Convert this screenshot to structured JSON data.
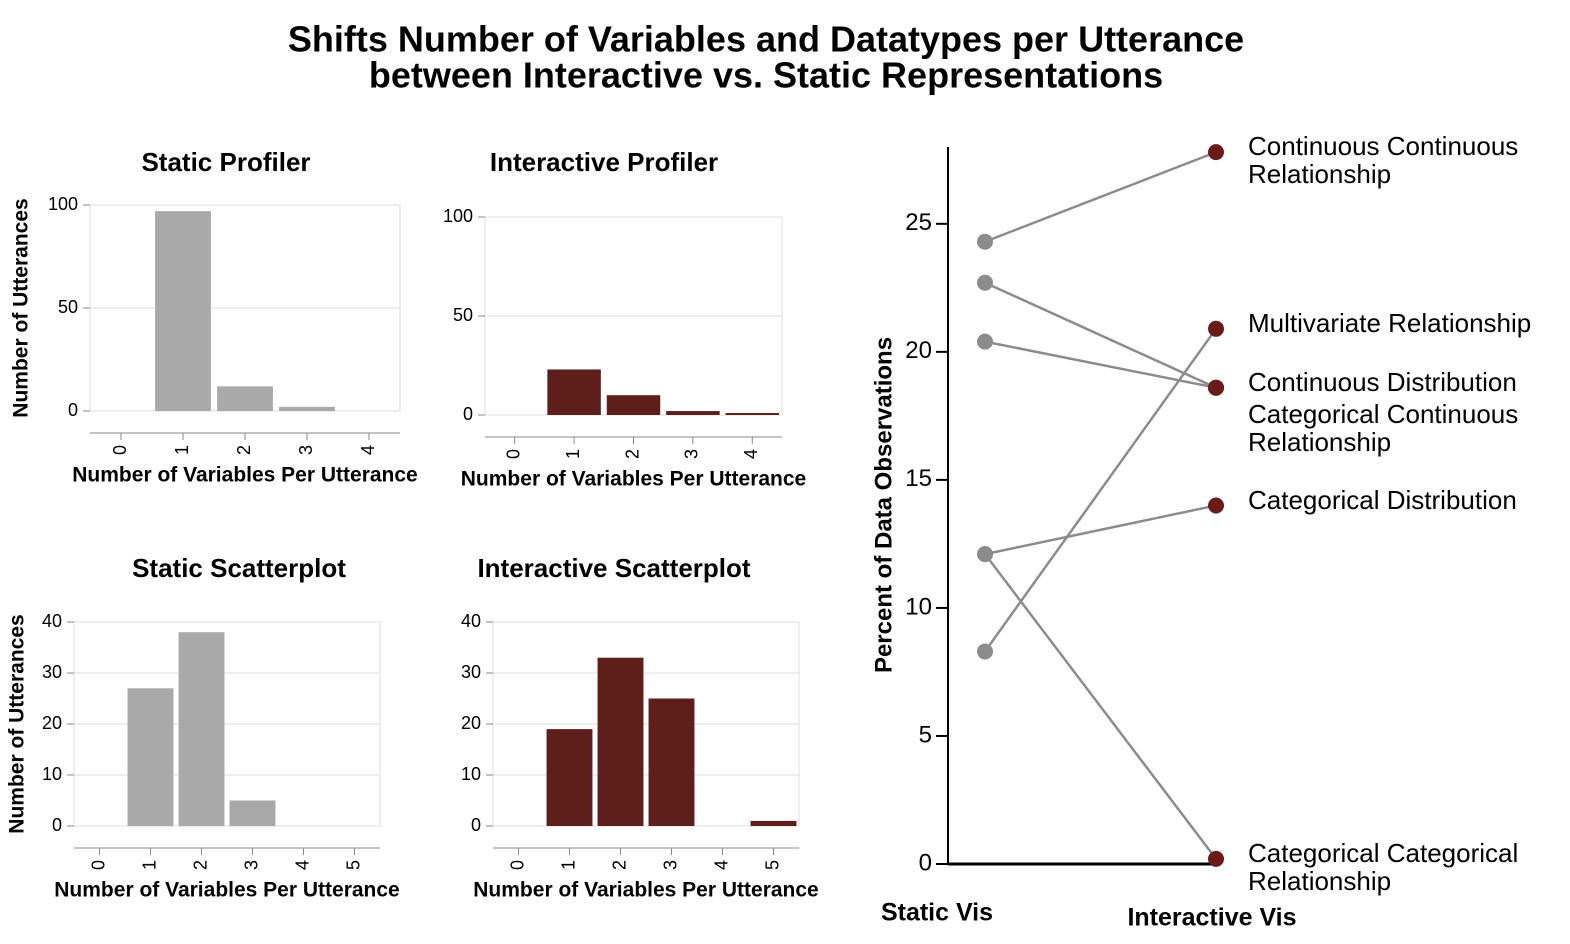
{
  "title": [
    "Shifts Number of Variables and Datatypes per Utterance",
    "between Interactive vs. Static Representations"
  ],
  "chart_data": [
    {
      "type": "bar",
      "title": "Static Profiler",
      "x_label": "Number of Variables Per Utterance",
      "y_label": "Number of Utterances",
      "categories": [
        "0",
        "1",
        "2",
        "3",
        "4"
      ],
      "values": [
        0,
        97,
        12,
        2,
        0
      ],
      "color": "#a9a9a9",
      "ylim": [
        0,
        100
      ],
      "yticks": [
        0,
        50,
        100
      ],
      "grid": true
    },
    {
      "type": "bar",
      "title": "Interactive Profiler",
      "x_label": "Number of Variables Per Utterance",
      "categories": [
        "0",
        "1",
        "2",
        "3",
        "4"
      ],
      "values": [
        0,
        23,
        10,
        2,
        1
      ],
      "color": "#5e1e1a",
      "ylim": [
        0,
        100
      ],
      "yticks": [
        0,
        50,
        100
      ],
      "grid": true
    },
    {
      "type": "bar",
      "title": "Static Scatterplot",
      "x_label": "Number of Variables Per Utterance",
      "y_label": "Number of Utterances",
      "categories": [
        "0",
        "1",
        "2",
        "3",
        "4",
        "5"
      ],
      "values": [
        0,
        27,
        38,
        5,
        0,
        0
      ],
      "color": "#a9a9a9",
      "ylim": [
        0,
        40
      ],
      "yticks": [
        0,
        10,
        20,
        30,
        40
      ],
      "grid": true
    },
    {
      "type": "bar",
      "title": "Interactive Scatterplot",
      "x_label": "Number of Variables Per Utterance",
      "categories": [
        "0",
        "1",
        "2",
        "3",
        "4",
        "5"
      ],
      "values": [
        0,
        19,
        33,
        25,
        0,
        1
      ],
      "color": "#5e1e1a",
      "ylim": [
        0,
        40
      ],
      "yticks": [
        0,
        10,
        20,
        30,
        40
      ],
      "grid": true
    },
    {
      "type": "slope",
      "y_label": "Percent of Data Observations",
      "categories": [
        "Static Vis",
        "Interactive Vis"
      ],
      "category_colors": [
        "#a0a0a0",
        "#6b1a17"
      ],
      "line_color": "#8c8c8c",
      "series": [
        {
          "name": "Continuous Continuous Relationship",
          "values": [
            24.3,
            27.8
          ]
        },
        {
          "name": "Continuous Distribution",
          "values": [
            22.7,
            18.6
          ]
        },
        {
          "name": "Categorical Continuous Relationship",
          "values": [
            20.4,
            18.6
          ]
        },
        {
          "name": "Categorical Distribution",
          "values": [
            12.1,
            14.0
          ]
        },
        {
          "name": "Categorical Categorical Relationship",
          "values": [
            12.1,
            0.2
          ]
        },
        {
          "name": "Multivariate Relationship",
          "values": [
            8.3,
            20.9
          ]
        }
      ],
      "ylim": [
        0,
        28
      ],
      "yticks": [
        0,
        5,
        10,
        15,
        20,
        25
      ]
    }
  ]
}
